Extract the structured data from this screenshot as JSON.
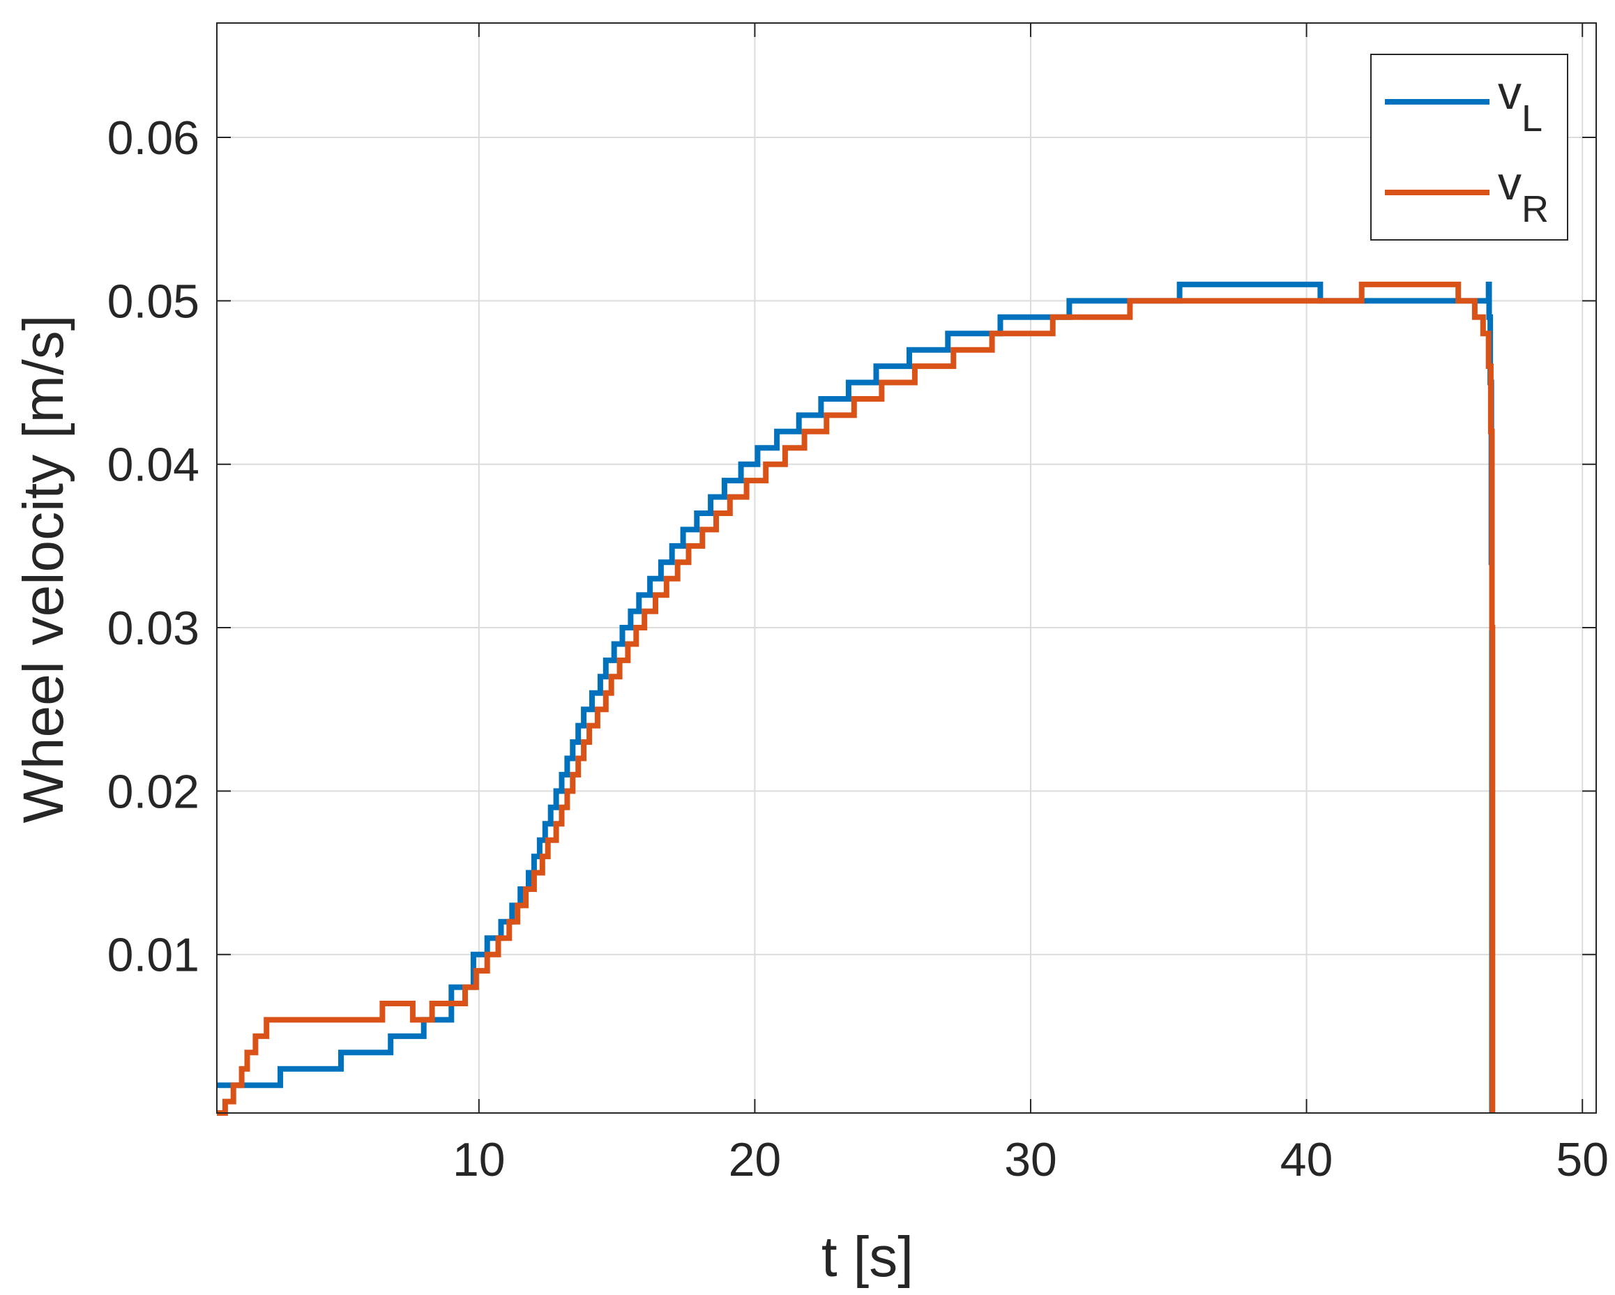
{
  "chart_data": {
    "type": "line",
    "xlabel": "t [s]",
    "ylabel": "Wheel velocity [m/s]",
    "xlim": [
      0.5,
      50.5
    ],
    "ylim": [
      0.0003,
      0.067
    ],
    "xticks": [
      10,
      20,
      30,
      40,
      50
    ],
    "xtick_labels": [
      "10",
      "20",
      "30",
      "40",
      "50"
    ],
    "yticks": [
      0.01,
      0.02,
      0.03,
      0.04,
      0.05,
      0.06
    ],
    "ytick_labels": [
      "0.01",
      "0.02",
      "0.03",
      "0.04",
      "0.05",
      "0.06"
    ],
    "grid": true,
    "legend_position": "top-right",
    "series": [
      {
        "name": "v",
        "subscript": "L",
        "color": "#0072BD",
        "step": true,
        "points": [
          [
            0.5,
            0.002
          ],
          [
            2.8,
            0.003
          ],
          [
            5.0,
            0.004
          ],
          [
            6.8,
            0.005
          ],
          [
            8.0,
            0.006
          ],
          [
            9.0,
            0.008
          ],
          [
            9.8,
            0.01
          ],
          [
            10.3,
            0.011
          ],
          [
            10.8,
            0.012
          ],
          [
            11.2,
            0.013
          ],
          [
            11.5,
            0.014
          ],
          [
            11.8,
            0.015
          ],
          [
            12.0,
            0.016
          ],
          [
            12.2,
            0.017
          ],
          [
            12.4,
            0.018
          ],
          [
            12.6,
            0.019
          ],
          [
            12.8,
            0.02
          ],
          [
            13.0,
            0.021
          ],
          [
            13.2,
            0.022
          ],
          [
            13.4,
            0.023
          ],
          [
            13.6,
            0.024
          ],
          [
            13.8,
            0.025
          ],
          [
            14.1,
            0.026
          ],
          [
            14.4,
            0.027
          ],
          [
            14.6,
            0.028
          ],
          [
            14.9,
            0.029
          ],
          [
            15.2,
            0.03
          ],
          [
            15.5,
            0.031
          ],
          [
            15.8,
            0.032
          ],
          [
            16.2,
            0.033
          ],
          [
            16.6,
            0.034
          ],
          [
            17.0,
            0.035
          ],
          [
            17.4,
            0.036
          ],
          [
            17.9,
            0.037
          ],
          [
            18.4,
            0.038
          ],
          [
            18.9,
            0.039
          ],
          [
            19.5,
            0.04
          ],
          [
            20.1,
            0.041
          ],
          [
            20.8,
            0.042
          ],
          [
            21.6,
            0.043
          ],
          [
            22.4,
            0.044
          ],
          [
            23.4,
            0.045
          ],
          [
            24.4,
            0.046
          ],
          [
            25.6,
            0.047
          ],
          [
            27.0,
            0.048
          ],
          [
            28.9,
            0.049
          ],
          [
            31.4,
            0.05
          ],
          [
            35.4,
            0.051
          ],
          [
            40.5,
            0.05
          ],
          [
            46.6,
            0.051
          ],
          [
            46.62,
            0.049
          ],
          [
            46.66,
            0.045
          ],
          [
            46.7,
            0.034
          ],
          [
            46.72,
            0.0003
          ]
        ]
      },
      {
        "name": "v",
        "subscript": "R",
        "color": "#D95319",
        "step": true,
        "points": [
          [
            0.5,
            0.0003
          ],
          [
            0.8,
            0.001
          ],
          [
            1.1,
            0.002
          ],
          [
            1.4,
            0.003
          ],
          [
            1.6,
            0.004
          ],
          [
            1.9,
            0.005
          ],
          [
            2.3,
            0.006
          ],
          [
            6.5,
            0.007
          ],
          [
            7.6,
            0.006
          ],
          [
            8.3,
            0.007
          ],
          [
            9.5,
            0.008
          ],
          [
            9.9,
            0.009
          ],
          [
            10.3,
            0.01
          ],
          [
            10.7,
            0.011
          ],
          [
            11.1,
            0.012
          ],
          [
            11.4,
            0.013
          ],
          [
            11.7,
            0.014
          ],
          [
            12.0,
            0.015
          ],
          [
            12.3,
            0.016
          ],
          [
            12.5,
            0.017
          ],
          [
            12.8,
            0.018
          ],
          [
            13.0,
            0.019
          ],
          [
            13.2,
            0.02
          ],
          [
            13.4,
            0.021
          ],
          [
            13.6,
            0.022
          ],
          [
            13.8,
            0.023
          ],
          [
            14.0,
            0.024
          ],
          [
            14.3,
            0.025
          ],
          [
            14.6,
            0.026
          ],
          [
            14.8,
            0.027
          ],
          [
            15.1,
            0.028
          ],
          [
            15.4,
            0.029
          ],
          [
            15.7,
            0.03
          ],
          [
            16.0,
            0.031
          ],
          [
            16.4,
            0.032
          ],
          [
            16.8,
            0.033
          ],
          [
            17.2,
            0.034
          ],
          [
            17.6,
            0.035
          ],
          [
            18.1,
            0.036
          ],
          [
            18.6,
            0.037
          ],
          [
            19.1,
            0.038
          ],
          [
            19.7,
            0.039
          ],
          [
            20.4,
            0.04
          ],
          [
            21.1,
            0.041
          ],
          [
            21.8,
            0.042
          ],
          [
            22.6,
            0.043
          ],
          [
            23.6,
            0.044
          ],
          [
            24.6,
            0.045
          ],
          [
            25.8,
            0.046
          ],
          [
            27.2,
            0.047
          ],
          [
            28.6,
            0.048
          ],
          [
            30.8,
            0.049
          ],
          [
            33.6,
            0.05
          ],
          [
            42.0,
            0.051
          ],
          [
            45.5,
            0.05
          ],
          [
            46.1,
            0.049
          ],
          [
            46.4,
            0.048
          ],
          [
            46.6,
            0.046
          ],
          [
            46.68,
            0.042
          ],
          [
            46.72,
            0.03
          ],
          [
            46.74,
            0.0003
          ]
        ]
      }
    ]
  }
}
